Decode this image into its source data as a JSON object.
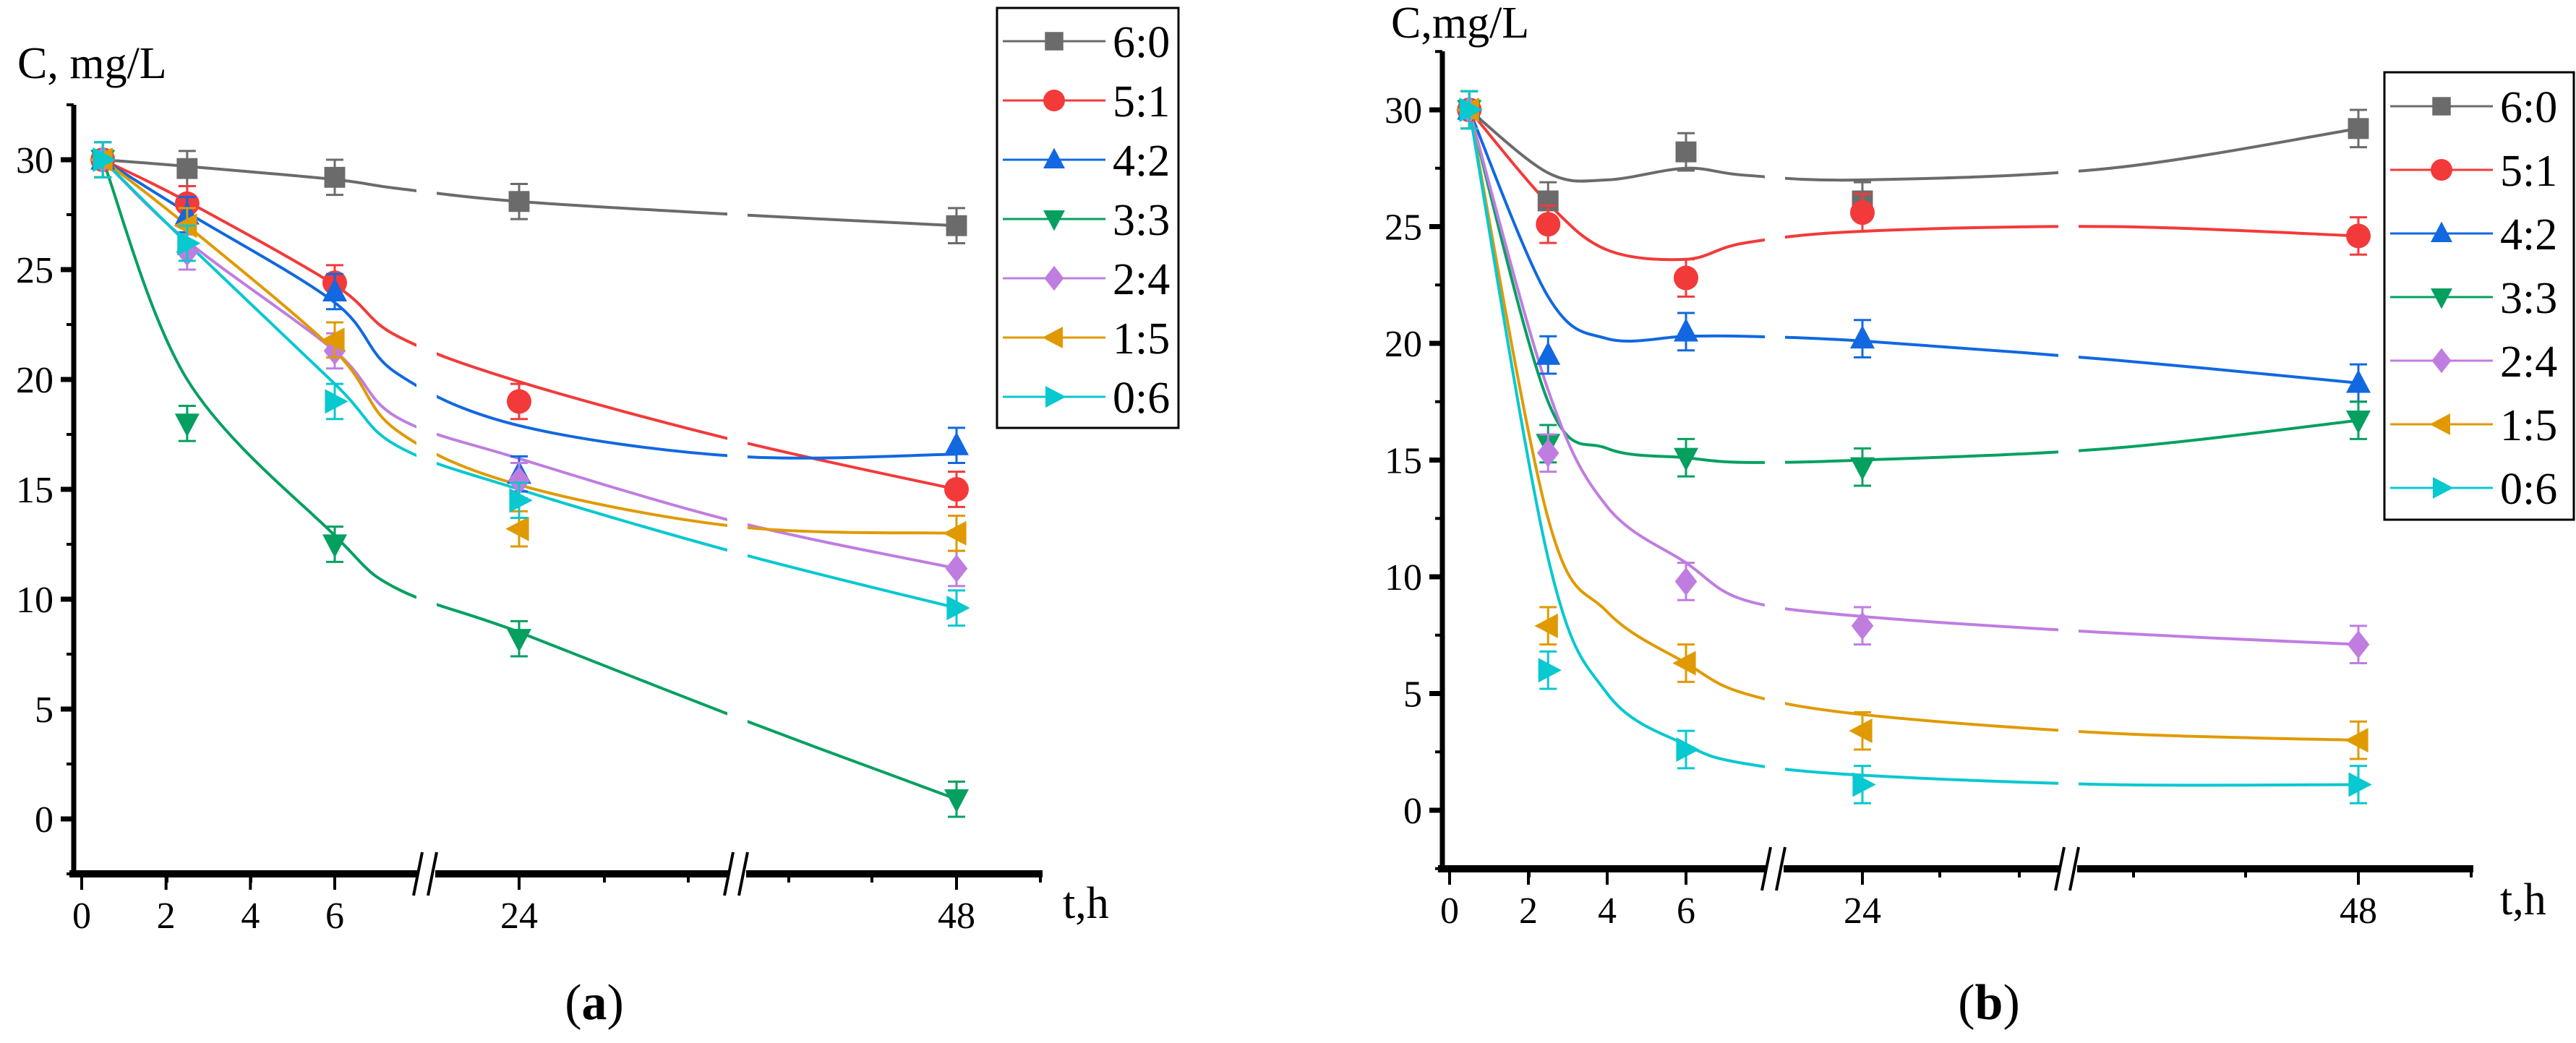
{
  "chart_data": [
    {
      "type": "line",
      "panel_label": "(a)",
      "panel_letter": "a",
      "ylabel": "C, mg/L",
      "xlabel": "t,h",
      "ylim": [
        -2.5,
        32.5
      ],
      "yticks": [
        "0",
        "5",
        "10",
        "15",
        "20",
        "25",
        "30"
      ],
      "xticks": [
        "0",
        "2",
        "4",
        "6",
        "24",
        "48"
      ],
      "x_axis": "broken: 0–6 linear, break, 24, break, 48",
      "legend_position": "top-right",
      "x": [
        0.5,
        2.5,
        6,
        24,
        48
      ],
      "fit_t": [
        0.5,
        2.5,
        6,
        12,
        24,
        36,
        48
      ],
      "error": 0.8,
      "series": [
        {
          "name": "6:0",
          "color": "#6b6b6b",
          "marker": "square",
          "values": [
            30,
            29.6,
            29.2,
            28.1,
            27
          ],
          "fit": [
            30,
            29.7,
            29.1,
            28.7,
            28.1,
            27.5,
            27
          ]
        },
        {
          "name": "5:1",
          "color": "#f23a3a",
          "marker": "circle",
          "values": [
            30,
            28,
            24.4,
            19,
            15
          ],
          "fit": [
            30,
            28.1,
            24.3,
            22,
            19.9,
            17.2,
            15
          ]
        },
        {
          "name": "4:2",
          "color": "#1168e0",
          "marker": "triangle-up",
          "values": [
            30,
            27.5,
            24,
            15.7,
            17
          ],
          "fit": [
            30,
            27.6,
            23.5,
            20.3,
            17.9,
            16.5,
            16.6
          ]
        },
        {
          "name": "3:3",
          "color": "#05a060",
          "marker": "triangle-down",
          "values": [
            30,
            18,
            12.5,
            8.2,
            0.9
          ],
          "fit": [
            30,
            20,
            12.9,
            10.5,
            8.5,
            4.6,
            0.9
          ]
        },
        {
          "name": "2:4",
          "color": "#c07de0",
          "marker": "diamond",
          "values": [
            30,
            25.8,
            21.3,
            15.4,
            11.4
          ],
          "fit": [
            30,
            26.3,
            21.3,
            18.3,
            16.4,
            13.5,
            11.4
          ]
        },
        {
          "name": "1:5",
          "color": "#e09a00",
          "marker": "triangle-left",
          "values": [
            30,
            27,
            21.8,
            13.2,
            13
          ],
          "fit": [
            30,
            27,
            21.3,
            17.7,
            15.2,
            13.3,
            13
          ]
        },
        {
          "name": "0:6",
          "color": "#08c8d0",
          "marker": "triangle-right",
          "values": [
            30,
            26.2,
            19,
            14.5,
            9.6
          ],
          "fit": [
            30,
            26.2,
            19.8,
            17,
            15,
            12.1,
            9.6
          ]
        }
      ]
    },
    {
      "type": "line",
      "panel_label": "(b)",
      "panel_letter": "b",
      "ylabel": "C,mg/L",
      "xlabel": "t,h",
      "ylim": [
        -2.5,
        32.5
      ],
      "yticks": [
        "0",
        "5",
        "10",
        "15",
        "20",
        "25",
        "30"
      ],
      "xticks": [
        "0",
        "2",
        "4",
        "6",
        "24",
        "48"
      ],
      "x_axis": "broken: 0–6 linear, break, 24, break, 48",
      "legend_position": "right",
      "x": [
        0.5,
        2.5,
        6,
        24,
        48
      ],
      "fit_t": [
        0.5,
        2.5,
        4,
        6,
        12,
        24,
        36,
        48
      ],
      "error": 0.8,
      "series": [
        {
          "name": "6:0",
          "color": "#6b6b6b",
          "marker": "square",
          "values": [
            30,
            26.1,
            28.2,
            26.1,
            29.2
          ],
          "fit": [
            30,
            27.3,
            27,
            27.5,
            27.2,
            27,
            27.5,
            29.2
          ]
        },
        {
          "name": "5:1",
          "color": "#f23a3a",
          "marker": "circle",
          "values": [
            30,
            25.1,
            22.8,
            25.6,
            24.6
          ],
          "fit": [
            30,
            26,
            24,
            23.6,
            24.3,
            24.8,
            25,
            24.6
          ]
        },
        {
          "name": "4:2",
          "color": "#1168e0",
          "marker": "triangle-up",
          "values": [
            30,
            19.5,
            20.5,
            20.2,
            18.3
          ],
          "fit": [
            30,
            22,
            20.2,
            20.3,
            20.3,
            20.1,
            19.3,
            18.3
          ]
        },
        {
          "name": "3:3",
          "color": "#05a060",
          "marker": "triangle-down",
          "values": [
            30,
            15.7,
            15.1,
            14.7,
            16.7
          ],
          "fit": [
            30,
            17.5,
            15.5,
            15.1,
            14.9,
            15,
            15.5,
            16.7
          ]
        },
        {
          "name": "2:4",
          "color": "#c07de0",
          "marker": "diamond",
          "values": [
            30,
            15.3,
            9.8,
            7.9,
            7.1
          ],
          "fit": [
            30,
            18,
            13,
            10.6,
            9,
            8.3,
            7.6,
            7.1
          ]
        },
        {
          "name": "1:5",
          "color": "#e09a00",
          "marker": "triangle-left",
          "values": [
            30,
            7.9,
            6.3,
            3.4,
            3.0
          ],
          "fit": [
            30,
            12.5,
            8.5,
            6.3,
            5,
            4.1,
            3.3,
            3
          ]
        },
        {
          "name": "0:6",
          "color": "#08c8d0",
          "marker": "triangle-right",
          "values": [
            30,
            6.0,
            2.6,
            1.1,
            1.1
          ],
          "fit": [
            30,
            10.8,
            5,
            2.8,
            2,
            1.5,
            1.1,
            1.1
          ]
        }
      ]
    }
  ]
}
